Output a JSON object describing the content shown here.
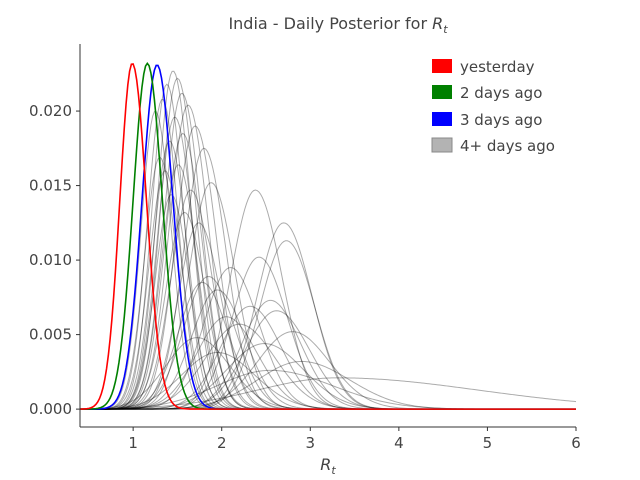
{
  "chart_data": {
    "type": "line",
    "title": "India - Daily Posterior for ",
    "title_math": "R",
    "title_math_sub": "t",
    "xlabel_math": "R",
    "xlabel_math_sub": "t",
    "ylabel": "",
    "xlim": [
      0.4,
      6.0
    ],
    "ylim": [
      -0.0012,
      0.0245
    ],
    "x_ticks": [
      1,
      2,
      3,
      4,
      5,
      6
    ],
    "x_tick_labels": [
      "1",
      "2",
      "3",
      "4",
      "5",
      "6"
    ],
    "y_ticks": [
      0.0,
      0.005,
      0.01,
      0.015,
      0.02
    ],
    "y_tick_labels": [
      "0.000",
      "0.005",
      "0.010",
      "0.015",
      "0.020"
    ],
    "grid": false,
    "legend_position": "top-right",
    "legend": [
      {
        "label": "yesterday",
        "color": "#ff0000"
      },
      {
        "label": "2 days ago",
        "color": "#008000"
      },
      {
        "label": "3 days ago",
        "color": "#0000ff"
      },
      {
        "label": "4+ days ago",
        "color": "#b3b3b3"
      }
    ],
    "series_highlight": [
      {
        "name": "yesterday",
        "color": "#ff0000",
        "peak_x": 0.99,
        "peak_y": 0.0232,
        "sigma_left": 0.14,
        "sigma_right": 0.16
      },
      {
        "name": "2 days ago",
        "color": "#008000",
        "peak_x": 1.16,
        "peak_y": 0.0232,
        "sigma_left": 0.16,
        "sigma_right": 0.17
      },
      {
        "name": "3 days ago",
        "color": "#0000ff",
        "peak_x": 1.27,
        "peak_y": 0.0231,
        "sigma_left": 0.17,
        "sigma_right": 0.18
      }
    ],
    "series_older": [
      {
        "peak_x": 1.45,
        "peak_y": 0.0227,
        "sigma_left": 0.18,
        "sigma_right": 0.2
      },
      {
        "peak_x": 1.5,
        "peak_y": 0.0222,
        "sigma_left": 0.19,
        "sigma_right": 0.21
      },
      {
        "peak_x": 1.38,
        "peak_y": 0.0218,
        "sigma_left": 0.17,
        "sigma_right": 0.19
      },
      {
        "peak_x": 1.55,
        "peak_y": 0.0212,
        "sigma_left": 0.2,
        "sigma_right": 0.22
      },
      {
        "peak_x": 1.33,
        "peak_y": 0.0208,
        "sigma_left": 0.17,
        "sigma_right": 0.18
      },
      {
        "peak_x": 1.62,
        "peak_y": 0.0204,
        "sigma_left": 0.21,
        "sigma_right": 0.23
      },
      {
        "peak_x": 1.25,
        "peak_y": 0.02,
        "sigma_left": 0.16,
        "sigma_right": 0.18
      },
      {
        "peak_x": 1.47,
        "peak_y": 0.0196,
        "sigma_left": 0.19,
        "sigma_right": 0.21
      },
      {
        "peak_x": 1.7,
        "peak_y": 0.019,
        "sigma_left": 0.22,
        "sigma_right": 0.24
      },
      {
        "peak_x": 1.56,
        "peak_y": 0.0185,
        "sigma_left": 0.2,
        "sigma_right": 0.22
      },
      {
        "peak_x": 1.41,
        "peak_y": 0.018,
        "sigma_left": 0.18,
        "sigma_right": 0.2
      },
      {
        "peak_x": 1.8,
        "peak_y": 0.0175,
        "sigma_left": 0.23,
        "sigma_right": 0.25
      },
      {
        "peak_x": 1.3,
        "peak_y": 0.0169,
        "sigma_left": 0.17,
        "sigma_right": 0.19
      },
      {
        "peak_x": 1.51,
        "peak_y": 0.0164,
        "sigma_left": 0.19,
        "sigma_right": 0.21
      },
      {
        "peak_x": 1.36,
        "peak_y": 0.016,
        "sigma_left": 0.18,
        "sigma_right": 0.19
      },
      {
        "peak_x": 1.88,
        "peak_y": 0.0152,
        "sigma_left": 0.25,
        "sigma_right": 0.27
      },
      {
        "peak_x": 1.65,
        "peak_y": 0.0147,
        "sigma_left": 0.22,
        "sigma_right": 0.24
      },
      {
        "peak_x": 1.43,
        "peak_y": 0.0144,
        "sigma_left": 0.18,
        "sigma_right": 0.2
      },
      {
        "peak_x": 1.58,
        "peak_y": 0.0132,
        "sigma_left": 0.21,
        "sigma_right": 0.23
      },
      {
        "peak_x": 1.74,
        "peak_y": 0.0125,
        "sigma_left": 0.23,
        "sigma_right": 0.25
      },
      {
        "peak_x": 2.38,
        "peak_y": 0.0147,
        "sigma_left": 0.28,
        "sigma_right": 0.3
      },
      {
        "peak_x": 2.7,
        "peak_y": 0.0125,
        "sigma_left": 0.3,
        "sigma_right": 0.32
      },
      {
        "peak_x": 2.73,
        "peak_y": 0.0113,
        "sigma_left": 0.3,
        "sigma_right": 0.32
      },
      {
        "peak_x": 2.42,
        "peak_y": 0.0102,
        "sigma_left": 0.3,
        "sigma_right": 0.32
      },
      {
        "peak_x": 2.1,
        "peak_y": 0.0095,
        "sigma_left": 0.3,
        "sigma_right": 0.32
      },
      {
        "peak_x": 1.85,
        "peak_y": 0.0089,
        "sigma_left": 0.28,
        "sigma_right": 0.3
      },
      {
        "peak_x": 1.78,
        "peak_y": 0.0085,
        "sigma_left": 0.27,
        "sigma_right": 0.29
      },
      {
        "peak_x": 1.95,
        "peak_y": 0.008,
        "sigma_left": 0.29,
        "sigma_right": 0.31
      },
      {
        "peak_x": 2.55,
        "peak_y": 0.0073,
        "sigma_left": 0.32,
        "sigma_right": 0.34
      },
      {
        "peak_x": 2.32,
        "peak_y": 0.0069,
        "sigma_left": 0.33,
        "sigma_right": 0.35
      },
      {
        "peak_x": 2.62,
        "peak_y": 0.0066,
        "sigma_left": 0.35,
        "sigma_right": 0.37
      },
      {
        "peak_x": 2.05,
        "peak_y": 0.0062,
        "sigma_left": 0.33,
        "sigma_right": 0.35
      },
      {
        "peak_x": 2.2,
        "peak_y": 0.0057,
        "sigma_left": 0.38,
        "sigma_right": 0.4
      },
      {
        "peak_x": 2.8,
        "peak_y": 0.0052,
        "sigma_left": 0.4,
        "sigma_right": 0.42
      },
      {
        "peak_x": 1.72,
        "peak_y": 0.0048,
        "sigma_left": 0.35,
        "sigma_right": 0.37
      },
      {
        "peak_x": 2.48,
        "peak_y": 0.0044,
        "sigma_left": 0.42,
        "sigma_right": 0.44
      },
      {
        "peak_x": 1.95,
        "peak_y": 0.0038,
        "sigma_left": 0.4,
        "sigma_right": 0.42
      },
      {
        "peak_x": 2.9,
        "peak_y": 0.0032,
        "sigma_left": 0.5,
        "sigma_right": 0.55
      },
      {
        "peak_x": 2.55,
        "peak_y": 0.0026,
        "sigma_left": 0.6,
        "sigma_right": 0.7
      },
      {
        "peak_x": 3.3,
        "peak_y": 0.0021,
        "sigma_left": 0.9,
        "sigma_right": 1.6
      }
    ]
  }
}
